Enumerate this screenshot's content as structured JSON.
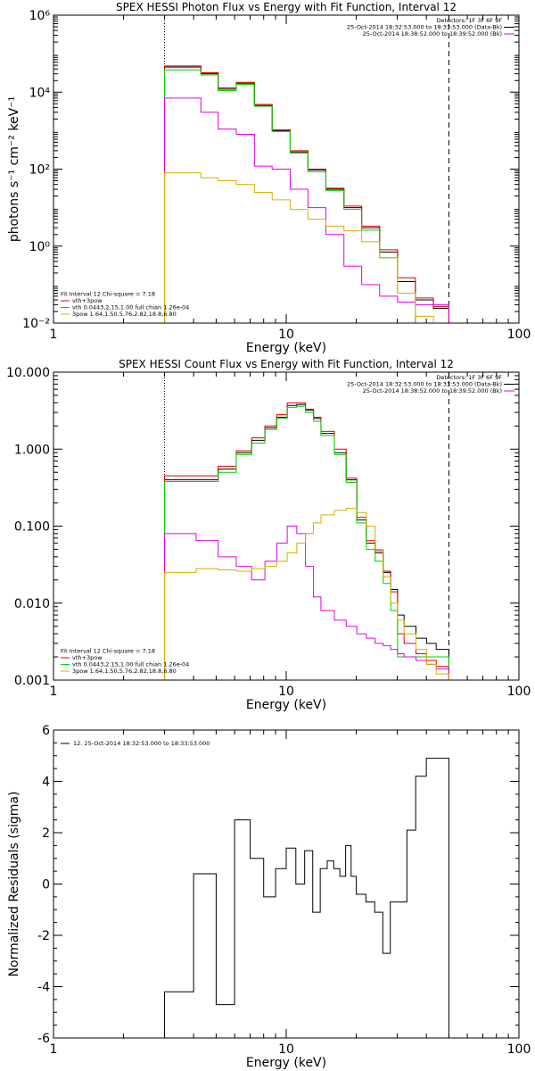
{
  "chart_data": [
    {
      "type": "line",
      "title": "SPEX HESSI Photon Flux vs Energy with Fit Function, Interval 12",
      "xlabel": "Energy (keV)",
      "ylabel": "photons s⁻¹ cm⁻² keV⁻¹",
      "xscale": "log",
      "yscale": "log",
      "xlim": [
        1,
        100
      ],
      "ylim": [
        0.01,
        1000000
      ],
      "xticks": [
        {
          "v": 1,
          "label": "1"
        },
        {
          "v": 10,
          "label": "10"
        },
        {
          "v": 100,
          "label": "100"
        }
      ],
      "yticks": [
        {
          "v": 0.01,
          "label": "10⁻²"
        },
        {
          "v": 1,
          "label": "10⁰"
        },
        {
          "v": 100,
          "label": "10²"
        },
        {
          "v": 10000,
          "label": "10⁴"
        },
        {
          "v": 1000000,
          "label": "10⁶"
        }
      ],
      "vlines": [
        {
          "x": 3,
          "style": "dotted"
        },
        {
          "x": 50,
          "style": "dashed"
        }
      ],
      "legend_top": {
        "position": "top-right",
        "lines": [
          {
            "text": "Detectors: 1F 3F 6F 9F",
            "color": "#000000"
          },
          {
            "text": "25-Oct-2014 18:32:53.000 to 18:33:53.000 (Data-Bk)",
            "color": "#000000"
          },
          {
            "text": "25-Oct-2014 18:38:52.000 to 18:39:52.000 (Bk)",
            "color": "#e000e0"
          }
        ]
      },
      "legend_bottom": {
        "position": "bottom-left",
        "lines": [
          {
            "text": "Fit Interval 12   Chi-square = 7.18",
            "color": "#000000"
          },
          {
            "text": "vth+3pow",
            "color": "#e00000"
          },
          {
            "text": "vth 0.0443,2.15,1.00  full chian 1.26e-04",
            "color": "#00d000"
          },
          {
            "text": "3pow  1.64,1.50,5.76,2.82,18.8,6.80",
            "color": "#d4b000"
          }
        ]
      },
      "series": [
        {
          "color": "#000000",
          "edges": [
            3,
            3.6,
            4.3,
            5.1,
            6.1,
            7.3,
            8.7,
            10.4,
            12.4,
            14.8,
            17.7,
            21.1,
            25.2,
            30.1,
            35.9,
            42.9,
            50
          ],
          "values": [
            45000,
            45000,
            30000,
            12000,
            17000,
            4500,
            1000,
            280,
            95,
            30,
            10,
            3,
            0.7,
            0.12,
            0.04,
            0.024
          ]
        },
        {
          "color": "#e00000",
          "edges": [
            3,
            3.6,
            4.3,
            5.1,
            6.1,
            7.3,
            8.7,
            10.4,
            12.4,
            14.8,
            17.7,
            21.1,
            25.2,
            30.1,
            35.9,
            42.9,
            50
          ],
          "values": [
            48000,
            48000,
            32000,
            13000,
            18000,
            4800,
            1050,
            300,
            100,
            32,
            11,
            3.3,
            0.8,
            0.15,
            0.045,
            0.027
          ]
        },
        {
          "color": "#00d000",
          "edges": [
            3,
            3.6,
            4.3,
            5.1,
            6.1,
            7.3,
            8.7,
            10.4,
            12.4,
            14.8,
            17.7,
            21.1,
            25.2,
            30.1,
            35.9,
            42.9,
            50
          ],
          "values": [
            38000,
            38000,
            28000,
            11000,
            16000,
            4300,
            950,
            260,
            85,
            28,
            9,
            2.6,
            0.5,
            0.06,
            0.009,
            0.009
          ]
        },
        {
          "color": "#e000e0",
          "edges": [
            3,
            3.6,
            4.3,
            5.1,
            6.1,
            7.3,
            8.7,
            10.4,
            12.4,
            14.8,
            17.7,
            21.1,
            25.2,
            30.1,
            35.9,
            42.9,
            50
          ],
          "values": [
            7000,
            7000,
            3000,
            1100,
            800,
            120,
            100,
            30,
            10,
            2,
            0.3,
            0.1,
            0.05,
            0.035,
            0.03,
            0.03
          ]
        },
        {
          "color": "#d4b000",
          "edges": [
            3,
            3.6,
            4.3,
            5.1,
            6.1,
            7.3,
            8.7,
            10.4,
            12.4,
            14.8,
            17.7,
            21.1,
            25.2,
            30.1,
            35.9,
            42.9,
            50
          ],
          "values": [
            80,
            80,
            60,
            50,
            40,
            25,
            16,
            9,
            5,
            3.3,
            2.5,
            1.3,
            0.5,
            0.06,
            0.015,
            0.01
          ]
        }
      ]
    },
    {
      "type": "line",
      "title": "SPEX HESSI Count Flux vs Energy with Fit Function, Interval 12",
      "xlabel": "Energy (keV)",
      "ylabel": "",
      "xscale": "log",
      "yscale": "log",
      "xlim": [
        1,
        100
      ],
      "ylim": [
        0.001,
        10
      ],
      "xticks": [
        {
          "v": 1,
          "label": "1"
        },
        {
          "v": 10,
          "label": "10"
        },
        {
          "v": 100,
          "label": "100"
        }
      ],
      "yticks": [
        {
          "v": 0.001,
          "label": "0.001"
        },
        {
          "v": 0.01,
          "label": "0.010"
        },
        {
          "v": 0.1,
          "label": "0.100"
        },
        {
          "v": 1,
          "label": "1.000"
        },
        {
          "v": 10,
          "label": "10.000"
        }
      ],
      "vlines": [
        {
          "x": 3,
          "style": "dotted"
        },
        {
          "x": 50,
          "style": "dashed"
        }
      ],
      "legend_top": {
        "position": "top-right",
        "lines": [
          {
            "text": "Detectors: 1F 3F 6F 9F",
            "color": "#000000"
          },
          {
            "text": "25-Oct-2014 18:32:53.000 to 18:33:53.000 (Data-Bk)",
            "color": "#000000"
          },
          {
            "text": "25-Oct-2014 18:38:52.000 to 18:39:52.000 (Bk)",
            "color": "#e000e0"
          }
        ]
      },
      "legend_bottom": {
        "position": "bottom-left",
        "lines": [
          {
            "text": "Fit Interval 12   Chi-square = 7.18",
            "color": "#000000"
          },
          {
            "text": "vth+3pow",
            "color": "#e00000"
          },
          {
            "text": "vth 0.0443,2.15,1.00  full chian 1.26e-04",
            "color": "#00d000"
          },
          {
            "text": "3pow  1.64,1.50,5.76,2.82,18.8,6.80",
            "color": "#d4b000"
          }
        ]
      },
      "series": [
        {
          "color": "#000000",
          "edges": [
            3,
            4.1,
            5.1,
            6.1,
            7.1,
            8.1,
            9.1,
            10.1,
            11.1,
            12.1,
            13.1,
            14.1,
            16.1,
            18.1,
            20.1,
            22.1,
            24.1,
            26.1,
            28.1,
            30.1,
            32.1,
            36.1,
            40.1,
            44.1,
            50
          ],
          "values": [
            0.4,
            0.4,
            0.55,
            0.9,
            1.3,
            1.9,
            2.6,
            3.7,
            3.8,
            3.2,
            2.5,
            1.6,
            0.9,
            0.4,
            0.12,
            0.06,
            0.045,
            0.025,
            0.015,
            0.007,
            0.005,
            0.0035,
            0.003,
            0.0025
          ]
        },
        {
          "color": "#e00000",
          "edges": [
            3,
            4.1,
            5.1,
            6.1,
            7.1,
            8.1,
            9.1,
            10.1,
            11.1,
            12.1,
            13.1,
            14.1,
            16.1,
            18.1,
            20.1,
            22.1,
            24.1,
            26.1,
            28.1,
            30.1,
            32.1,
            36.1,
            40.1,
            44.1,
            50
          ],
          "values": [
            0.45,
            0.45,
            0.6,
            0.95,
            1.4,
            2.0,
            2.8,
            4.0,
            4.0,
            3.3,
            2.6,
            1.7,
            1.0,
            0.42,
            0.13,
            0.065,
            0.048,
            0.026,
            0.014,
            0.004,
            0.003,
            0.0022,
            0.0018,
            0.0015
          ]
        },
        {
          "color": "#00d000",
          "edges": [
            3,
            4.1,
            5.1,
            6.1,
            7.1,
            8.1,
            9.1,
            10.1,
            11.1,
            12.1,
            13.1,
            14.1,
            16.1,
            18.1,
            20.1,
            22.1,
            24.1,
            26.1,
            28.1,
            30.1,
            50
          ],
          "values": [
            0.38,
            0.38,
            0.5,
            0.85,
            1.2,
            1.8,
            2.5,
            3.5,
            3.6,
            3.0,
            2.3,
            1.5,
            0.85,
            0.37,
            0.11,
            0.05,
            0.035,
            0.018,
            0.008,
            0.002
          ]
        },
        {
          "color": "#e000e0",
          "edges": [
            3,
            4.1,
            5.1,
            6.1,
            7.1,
            8.1,
            9.1,
            10.1,
            11.1,
            12.1,
            13.1,
            14.1,
            16.1,
            18.1,
            20.1,
            22.1,
            24.1,
            26.1,
            28.1,
            30.1,
            32.1,
            36.1,
            40.1,
            44.1,
            50
          ],
          "values": [
            0.08,
            0.065,
            0.04,
            0.03,
            0.02,
            0.035,
            0.06,
            0.1,
            0.08,
            0.03,
            0.012,
            0.008,
            0.006,
            0.005,
            0.004,
            0.0035,
            0.003,
            0.0028,
            0.0025,
            0.0022,
            0.002,
            0.0018,
            0.0016,
            0.0014
          ]
        },
        {
          "color": "#d4b000",
          "edges": [
            3,
            4.1,
            5.1,
            6.1,
            7.1,
            8.1,
            9.1,
            10.1,
            11.1,
            12.1,
            13.1,
            14.1,
            16.1,
            18.1,
            20.1,
            22.1,
            24.1,
            26.1,
            28.1,
            30.1,
            32.1,
            36.1,
            40.1,
            44.1,
            50
          ],
          "values": [
            0.025,
            0.028,
            0.027,
            0.026,
            0.028,
            0.03,
            0.035,
            0.045,
            0.06,
            0.08,
            0.11,
            0.14,
            0.16,
            0.17,
            0.15,
            0.1,
            0.05,
            0.022,
            0.01,
            0.006,
            0.004,
            0.0025,
            0.0016,
            0.0012
          ]
        }
      ]
    },
    {
      "type": "line",
      "title": "",
      "xlabel": "Energy (keV)",
      "ylabel": "Normalized Residuals (sigma)",
      "xscale": "log",
      "yscale": "linear",
      "xlim": [
        1,
        100
      ],
      "ylim": [
        -6,
        6
      ],
      "xticks": [
        {
          "v": 1,
          "label": "1"
        },
        {
          "v": 10,
          "label": "10"
        },
        {
          "v": 100,
          "label": "100"
        }
      ],
      "yticks": [
        {
          "v": -6,
          "label": "-6"
        },
        {
          "v": -4,
          "label": "-4"
        },
        {
          "v": -2,
          "label": "-2"
        },
        {
          "v": 0,
          "label": "0"
        },
        {
          "v": 2,
          "label": "2"
        },
        {
          "v": 4,
          "label": "4"
        },
        {
          "v": 6,
          "label": "6"
        }
      ],
      "vlines": [],
      "legend_top": {
        "position": "top-left",
        "lines": [
          {
            "text": "12. 25-Oct-2014 18:32:53.000 to 18:33:53.000",
            "color": "#000000"
          }
        ]
      },
      "legend_bottom": {
        "position": "bottom-left",
        "lines": []
      },
      "series": [
        {
          "color": "#000000",
          "edges": [
            3,
            3.5,
            4,
            4.5,
            5,
            5.5,
            6,
            6.5,
            7,
            7.5,
            8,
            8.5,
            9,
            9.5,
            10,
            11,
            12,
            13,
            14,
            15,
            16,
            17,
            18,
            19,
            20,
            22,
            24,
            26,
            28,
            30,
            33,
            36,
            40,
            45,
            50
          ],
          "values": [
            -4.2,
            -4.2,
            0.4,
            0.4,
            -4.7,
            -4.7,
            2.5,
            2.5,
            1.0,
            1.0,
            -0.5,
            -0.5,
            0.6,
            0.6,
            1.4,
            0.0,
            1.3,
            -1.1,
            0.6,
            0.9,
            0.6,
            0.3,
            1.5,
            0.3,
            -0.4,
            -0.7,
            -1.1,
            -2.7,
            -0.7,
            -0.7,
            2.1,
            4.2,
            4.9,
            4.9
          ]
        }
      ]
    }
  ]
}
